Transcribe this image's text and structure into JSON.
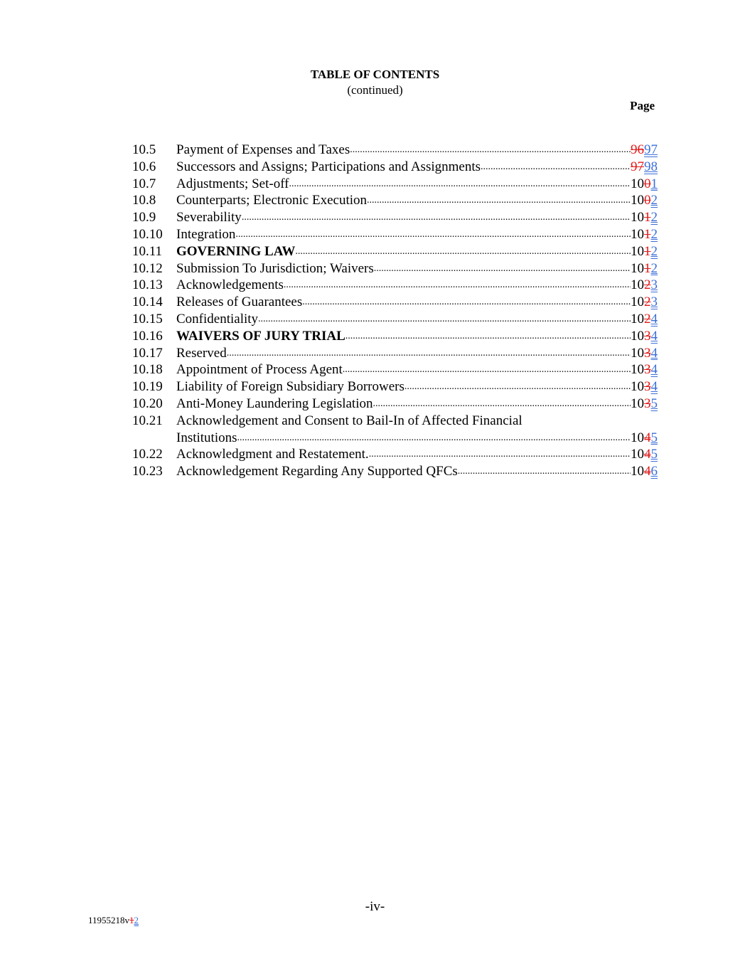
{
  "header": {
    "title": "TABLE OF CONTENTS",
    "subtitle": "(continued)",
    "page_label": "Page"
  },
  "entries": [
    {
      "num": "10.5",
      "title": "Payment of Expenses and Taxes",
      "bold": false,
      "base": "",
      "del": "96",
      "ins": "97"
    },
    {
      "num": "10.6",
      "title": "Successors and Assigns; Participations and Assignments",
      "bold": false,
      "base": "",
      "del": "97",
      "ins": "98"
    },
    {
      "num": "10.7",
      "title": "Adjustments; Set-off",
      "bold": false,
      "base": "10",
      "del": "0",
      "ins": "1"
    },
    {
      "num": "10.8",
      "title": "Counterparts; Electronic Execution",
      "bold": false,
      "base": "10",
      "del": "0",
      "ins": "2"
    },
    {
      "num": "10.9",
      "title": "Severability",
      "bold": false,
      "base": "10",
      "del": "1",
      "ins": "2"
    },
    {
      "num": "10.10",
      "title": "Integration",
      "bold": false,
      "base": "10",
      "del": "1",
      "ins": "2"
    },
    {
      "num": "10.11",
      "title": "GOVERNING LAW",
      "bold": true,
      "base": "10",
      "del": "1",
      "ins": "2"
    },
    {
      "num": "10.12",
      "title": "Submission To Jurisdiction; Waivers",
      "bold": false,
      "base": "10",
      "del": "1",
      "ins": "2"
    },
    {
      "num": "10.13",
      "title": "Acknowledgements",
      "bold": false,
      "base": "10",
      "del": "2",
      "ins": "3"
    },
    {
      "num": "10.14",
      "title": "Releases of Guarantees",
      "bold": false,
      "base": "10",
      "del": "2",
      "ins": "3"
    },
    {
      "num": "10.15",
      "title": "Confidentiality",
      "bold": false,
      "base": "10",
      "del": "2",
      "ins": "4"
    },
    {
      "num": "10.16",
      "title": "WAIVERS OF JURY TRIAL",
      "bold": true,
      "base": "10",
      "del": "3",
      "ins": "4"
    },
    {
      "num": "10.17",
      "title": "Reserved",
      "bold": false,
      "base": "10",
      "del": "3",
      "ins": "4"
    },
    {
      "num": "10.18",
      "title": "Appointment of Process Agent",
      "bold": false,
      "base": "10",
      "del": "3",
      "ins": "4"
    },
    {
      "num": "10.19",
      "title": "Liability of Foreign Subsidiary Borrowers",
      "bold": false,
      "base": "10",
      "del": "3",
      "ins": "4"
    },
    {
      "num": "10.20",
      "title": "Anti-Money Laundering Legislation",
      "bold": false,
      "base": "10",
      "del": "3",
      "ins": "5"
    },
    {
      "num": "10.21",
      "title": "Acknowledgement and Consent to Bail-In of Affected Financial",
      "cont": "Institutions",
      "bold": false,
      "base": "10",
      "del": "4",
      "ins": "5"
    },
    {
      "num": "10.22",
      "title": "Acknowledgment and Restatement.",
      "bold": false,
      "base": "10",
      "del": "4",
      "ins": "5"
    },
    {
      "num": "10.23",
      "title": "Acknowledgement Regarding Any Supported QFCs",
      "bold": false,
      "base": "10",
      "del": "4",
      "ins": "6"
    }
  ],
  "footer": {
    "page_number": "-iv-",
    "doc_id_base": "11955218v",
    "doc_id_del": "1",
    "doc_id_ins": "2"
  },
  "colors": {
    "deleted": "#e21b1b",
    "inserted": "#3b6fd8"
  }
}
